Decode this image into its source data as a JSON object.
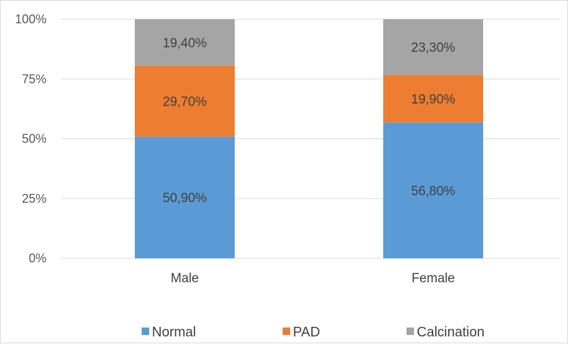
{
  "chart_data": {
    "type": "bar",
    "stacked": true,
    "title": "",
    "xlabel": "",
    "ylabel": "",
    "ylim": [
      0,
      100
    ],
    "yticks": [
      "0%",
      "25%",
      "50%",
      "75%",
      "100%"
    ],
    "categories": [
      "Male",
      "Female"
    ],
    "series": [
      {
        "name": "Normal",
        "color": "#5b9bd5",
        "values": [
          50.9,
          56.8
        ],
        "labels": [
          "50,90%",
          "56,80%"
        ]
      },
      {
        "name": "PAD",
        "color": "#ed7d31",
        "values": [
          29.7,
          19.9
        ],
        "labels": [
          "29,70%",
          "19,90%"
        ]
      },
      {
        "name": "Calcination",
        "color": "#a5a5a5",
        "values": [
          19.4,
          23.3
        ],
        "labels": [
          "19,40%",
          "23,30%"
        ]
      }
    ],
    "grid": true,
    "legend": "bottom"
  }
}
